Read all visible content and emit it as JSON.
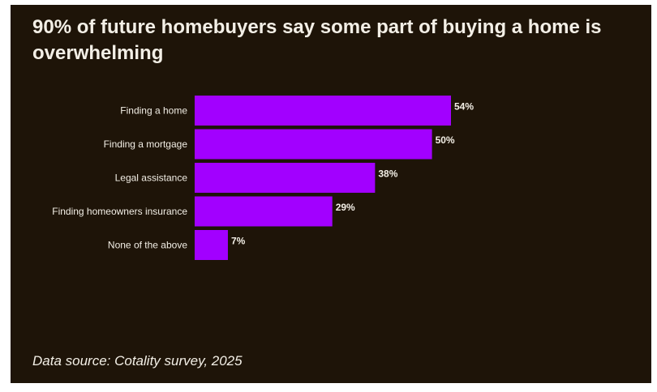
{
  "title": "90% of future homebuyers say some part of buying a home is overwhelming",
  "source": "Data source: Cotality survey, 2025",
  "colors": {
    "background": "#1e1408",
    "bar": "#a200ff",
    "text": "#f3efe6"
  },
  "chart_data": {
    "type": "bar",
    "orientation": "horizontal",
    "title": "90% of future homebuyers say some part of buying a home is overwhelming",
    "categories": [
      "Finding a home",
      "Finding a mortgage",
      "Legal assistance",
      "Finding homeowners insurance",
      "None of the above"
    ],
    "values": [
      54,
      50,
      38,
      29,
      7
    ],
    "value_labels": [
      "54%",
      "50%",
      "38%",
      "29%",
      "7%"
    ],
    "xlim": [
      0,
      54
    ],
    "grid": false,
    "legend": "none"
  }
}
